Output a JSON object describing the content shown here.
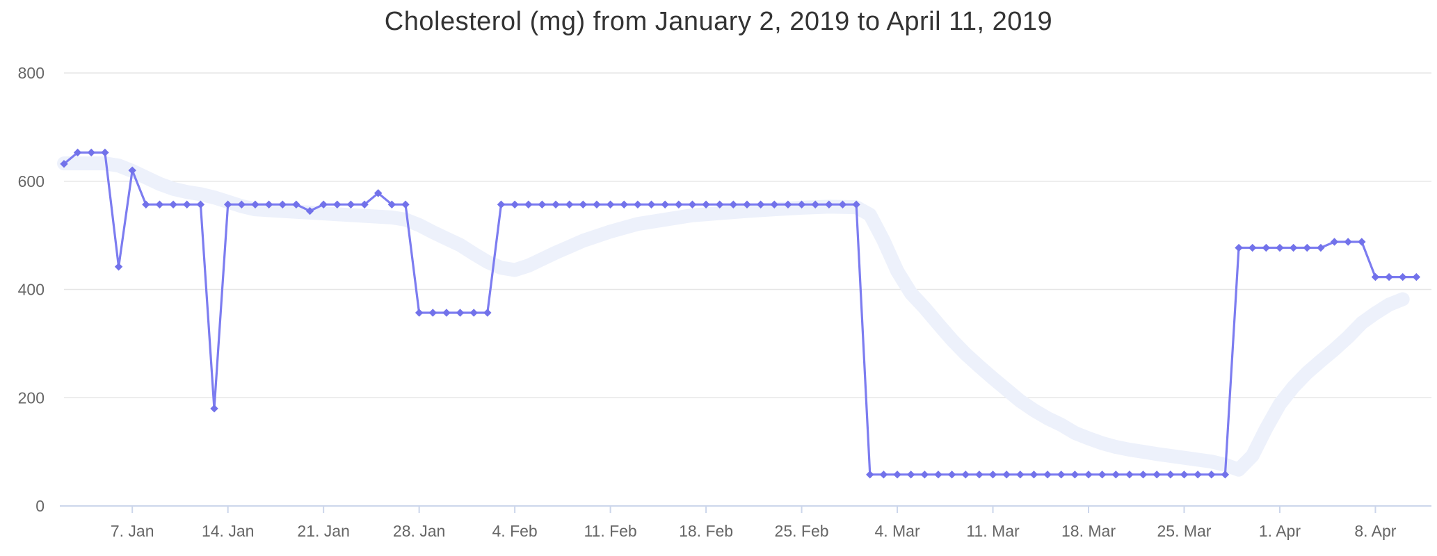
{
  "chart_data": {
    "type": "line",
    "title": "Cholesterol (mg) from January 2, 2019 to April 11, 2019",
    "x_start_label": "January 2, 2019",
    "x_end_label": "April 11, 2019",
    "x_days_total": 100,
    "x_tick_labels": [
      "7. Jan",
      "14. Jan",
      "21. Jan",
      "28. Jan",
      "4. Feb",
      "11. Feb",
      "18. Feb",
      "25. Feb",
      "4. Mar",
      "11. Mar",
      "18. Mar",
      "25. Mar",
      "1. Apr",
      "8. Apr"
    ],
    "x_tick_day_indices": [
      5,
      12,
      19,
      26,
      33,
      40,
      47,
      54,
      61,
      68,
      75,
      82,
      89,
      96
    ],
    "y_tick_labels": [
      "0",
      "200",
      "400",
      "600",
      "800"
    ],
    "y_tick_values": [
      0,
      200,
      400,
      600,
      800
    ],
    "ylim": [
      0,
      800
    ],
    "grid": true,
    "legend": false,
    "series": [
      {
        "name": "Cholesterol (mg) daily",
        "type": "line",
        "values_daily": [
          632,
          653,
          653,
          653,
          442,
          620,
          557,
          557,
          557,
          557,
          557,
          180,
          557,
          557,
          557,
          557,
          557,
          557,
          545,
          557,
          557,
          557,
          557,
          578,
          557,
          557,
          357,
          357,
          357,
          357,
          357,
          357,
          557,
          557,
          557,
          557,
          557,
          557,
          557,
          557,
          557,
          557,
          557,
          557,
          557,
          557,
          557,
          557,
          557,
          557,
          557,
          557,
          557,
          557,
          557,
          557,
          557,
          557,
          557,
          58,
          58,
          58,
          58,
          58,
          58,
          58,
          58,
          58,
          58,
          58,
          58,
          58,
          58,
          58,
          58,
          58,
          58,
          58,
          58,
          58,
          58,
          58,
          58,
          58,
          58,
          58,
          477,
          477,
          477,
          477,
          477,
          477,
          477,
          488,
          488,
          488,
          423,
          423,
          423,
          423
        ]
      },
      {
        "name": "Smoothed trend band",
        "type": "band",
        "points_day_value": [
          [
            0,
            633
          ],
          [
            3,
            633
          ],
          [
            4,
            629
          ],
          [
            5,
            619
          ],
          [
            6,
            607
          ],
          [
            7,
            595
          ],
          [
            8,
            586
          ],
          [
            9,
            580
          ],
          [
            10,
            576
          ],
          [
            11,
            570
          ],
          [
            12,
            562
          ],
          [
            13,
            554
          ],
          [
            14,
            548
          ],
          [
            16,
            545
          ],
          [
            18,
            542
          ],
          [
            20,
            539
          ],
          [
            22,
            536
          ],
          [
            24,
            533
          ],
          [
            25,
            529
          ],
          [
            26,
            519
          ],
          [
            27,
            506
          ],
          [
            28,
            494
          ],
          [
            29,
            482
          ],
          [
            30,
            466
          ],
          [
            31,
            451
          ],
          [
            32,
            440
          ],
          [
            33,
            436
          ],
          [
            34,
            444
          ],
          [
            35,
            456
          ],
          [
            36,
            468
          ],
          [
            37,
            479
          ],
          [
            38,
            490
          ],
          [
            40,
            507
          ],
          [
            42,
            521
          ],
          [
            44,
            529
          ],
          [
            46,
            537
          ],
          [
            48,
            541
          ],
          [
            50,
            545
          ],
          [
            52,
            548
          ],
          [
            54,
            551
          ],
          [
            56,
            553
          ],
          [
            58,
            552
          ],
          [
            59,
            538
          ],
          [
            60,
            490
          ],
          [
            61,
            434
          ],
          [
            62,
            393
          ],
          [
            63,
            366
          ],
          [
            64,
            336
          ],
          [
            65,
            307
          ],
          [
            66,
            281
          ],
          [
            67,
            258
          ],
          [
            68,
            236
          ],
          [
            69,
            215
          ],
          [
            70,
            194
          ],
          [
            71,
            177
          ],
          [
            72,
            162
          ],
          [
            73,
            150
          ],
          [
            74,
            135
          ],
          [
            75,
            125
          ],
          [
            76,
            116
          ],
          [
            77,
            109
          ],
          [
            78,
            104
          ],
          [
            80,
            96
          ],
          [
            82,
            89
          ],
          [
            84,
            82
          ],
          [
            85,
            76
          ],
          [
            86,
            67
          ],
          [
            87,
            93
          ],
          [
            88,
            143
          ],
          [
            89,
            188
          ],
          [
            90,
            220
          ],
          [
            91,
            246
          ],
          [
            92,
            268
          ],
          [
            93,
            289
          ],
          [
            94,
            312
          ],
          [
            95,
            338
          ],
          [
            96,
            356
          ],
          [
            97,
            372
          ],
          [
            98,
            382
          ]
        ]
      }
    ],
    "colors": {
      "line": "#7c7cf0",
      "marker": "#7272ea",
      "band": "#edf1fb",
      "grid": "#e6e6e6",
      "axis": "#ccd6eb",
      "labels": "#666666",
      "title": "#333333",
      "background": "#ffffff"
    }
  }
}
